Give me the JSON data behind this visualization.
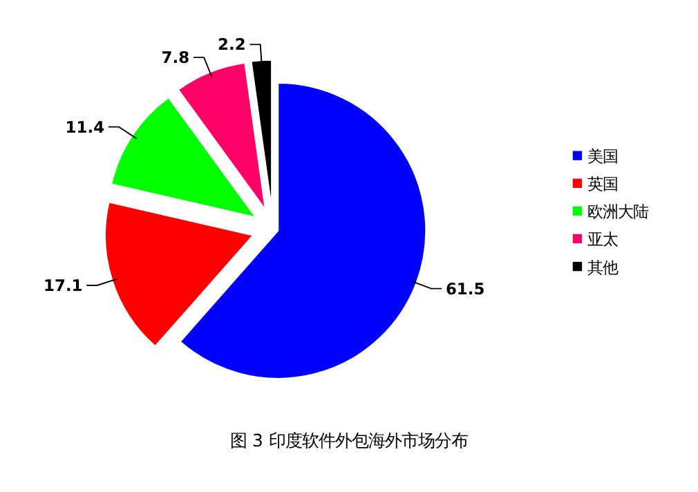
{
  "chart_data": {
    "type": "pie",
    "title": "图 3 印度软件外包海外市场分布",
    "categories": [
      "美国",
      "英国",
      "欧洲大陆",
      "亚太",
      "其他"
    ],
    "values": [
      61.5,
      17.1,
      11.4,
      7.8,
      2.2
    ],
    "colors": [
      "#0000ff",
      "#ff0000",
      "#00ff00",
      "#ff0066",
      "#000000"
    ],
    "data_labels": true,
    "legend": "right"
  }
}
